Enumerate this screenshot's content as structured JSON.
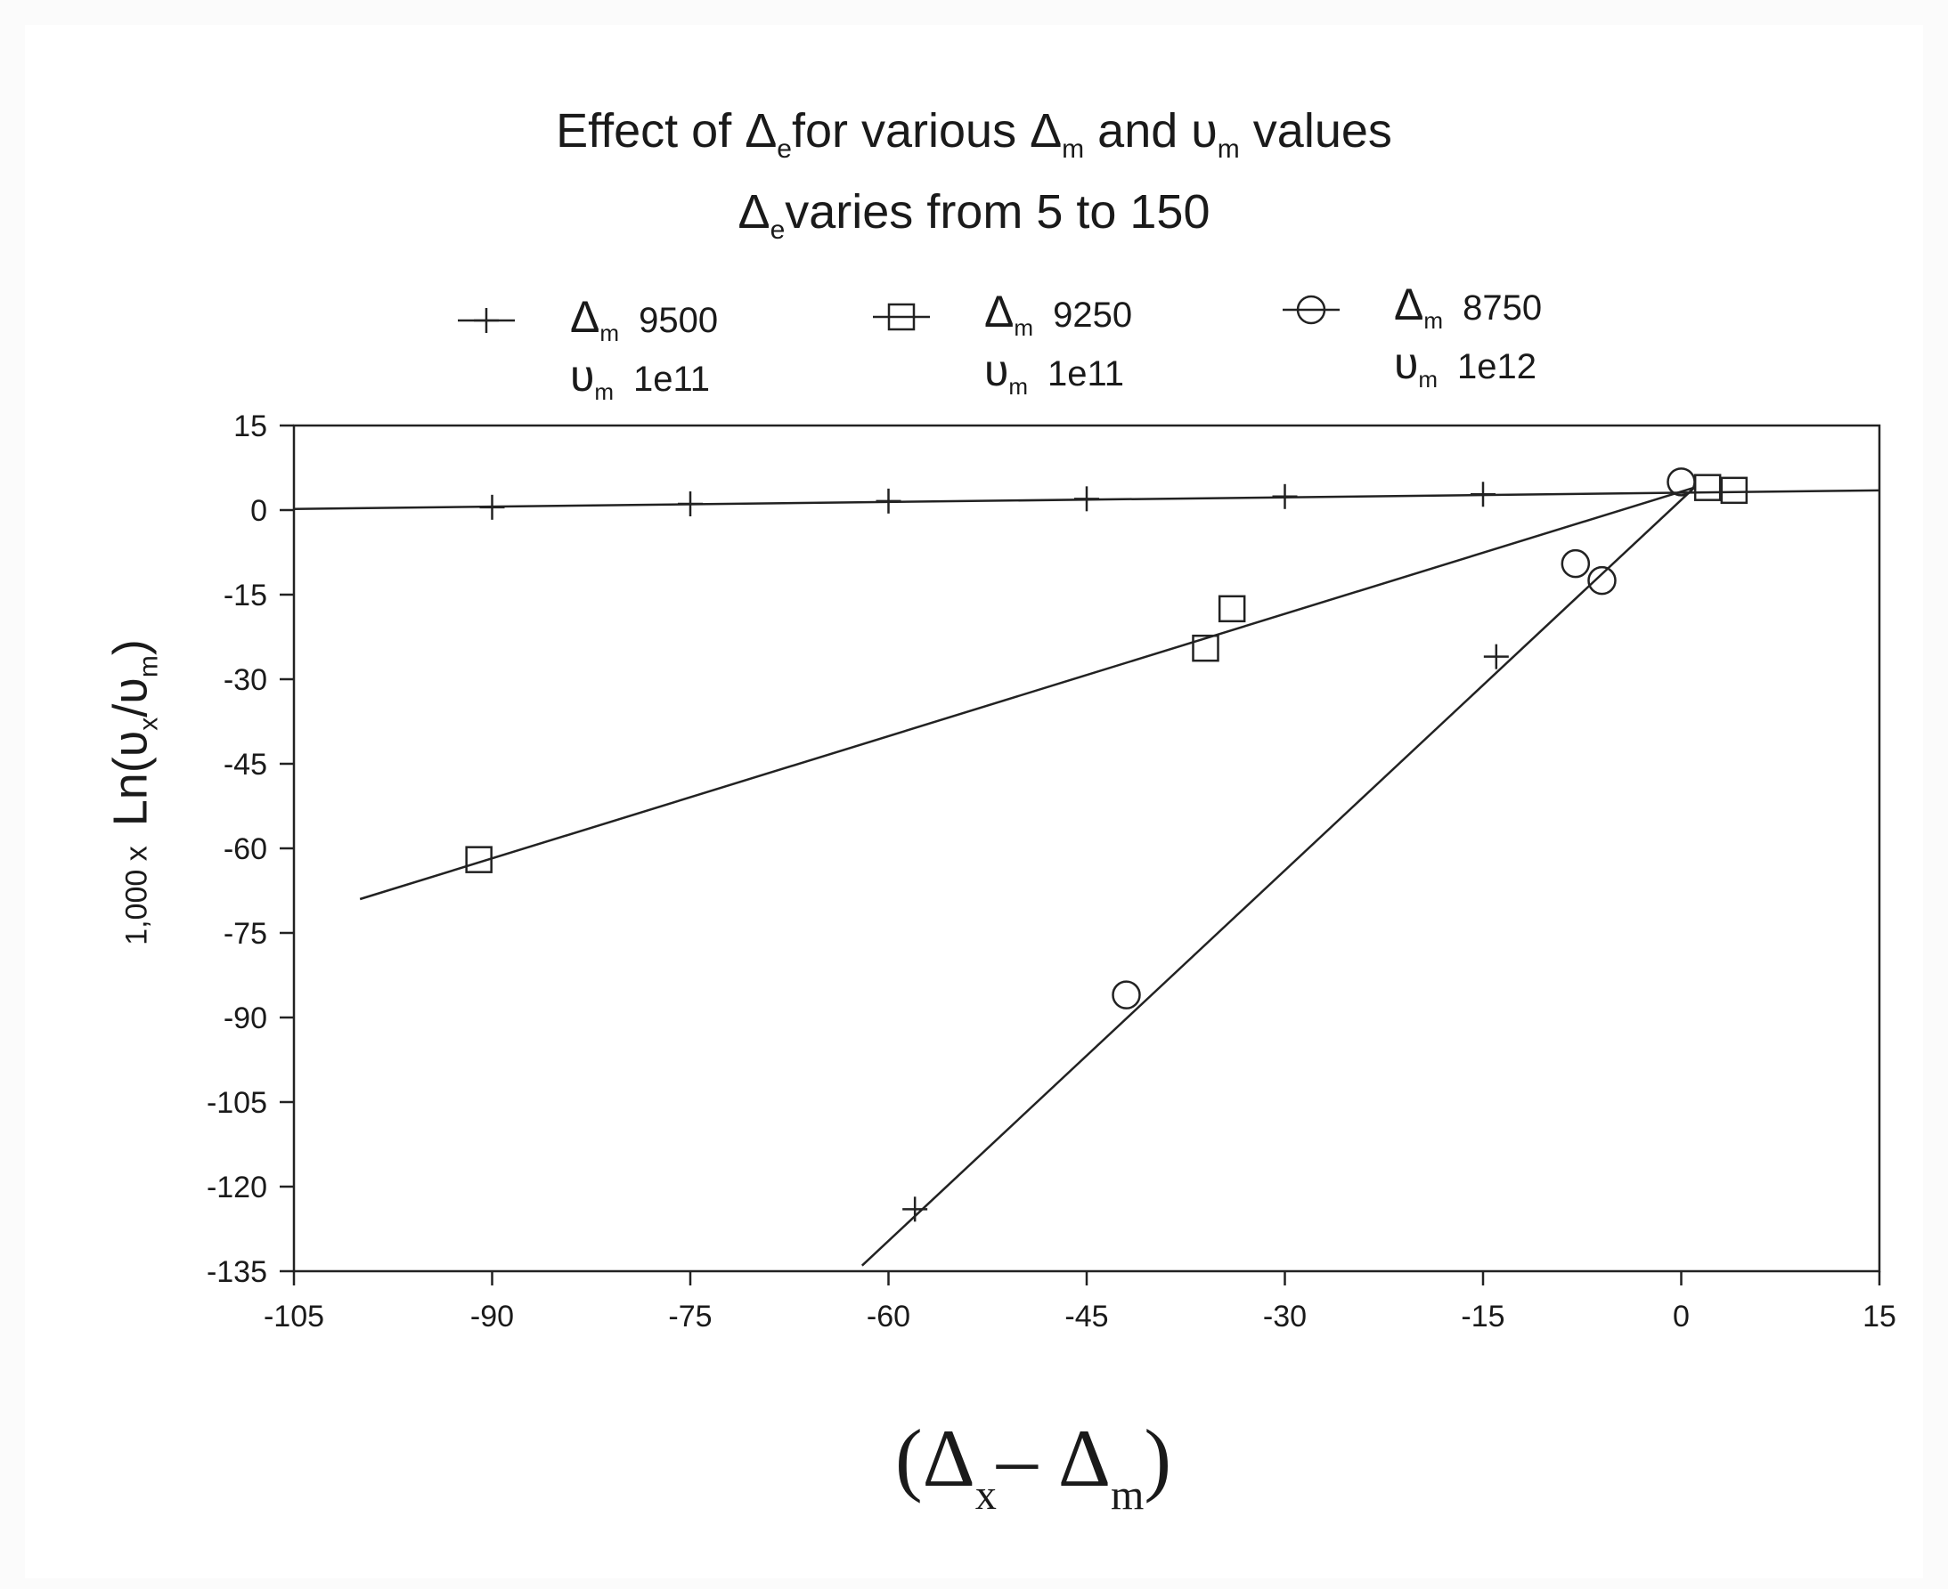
{
  "chart_data": {
    "type": "scatter",
    "title_line1": {
      "pre": "Effect of ",
      "sym1": "Δ",
      "sub1": "e",
      "mid1": "for various ",
      "sym2": "Δ",
      "sub2": "m",
      "mid2": " and ",
      "sym3": "υ",
      "sub3": "m",
      "post": " values"
    },
    "title_line2": {
      "sym": "Δ",
      "sub": "e",
      "post": "varies from 5 to 150"
    },
    "xlabel": {
      "open": "(Δ",
      "sub1": "x",
      "mid": "– Δ",
      "sub2": "m",
      "close": ")"
    },
    "ylabel": {
      "factor": "1,000 x",
      "pre": "Ln(υ",
      "sub1": "x",
      "mid": "/υ",
      "sub2": "m",
      "close": ")"
    },
    "xlim": [
      -105,
      15
    ],
    "ylim": [
      -135,
      15
    ],
    "xticks": [
      "-105",
      "-90",
      "-75",
      "-60",
      "-45",
      "-30",
      "-15",
      "0",
      "15"
    ],
    "yticks": [
      "15",
      "0",
      "-15",
      "-30",
      "-45",
      "-60",
      "-75",
      "-90",
      "-105",
      "-120",
      "-135"
    ],
    "series": [
      {
        "legend": {
          "sym1": "Δ",
          "sub1": "m",
          "val1": "9500",
          "sym2": "υ",
          "sub2": "m",
          "val2": "1e11"
        },
        "marker": "plus",
        "points": [
          {
            "x": -90,
            "y": 0.5
          },
          {
            "x": -75,
            "y": 1.1
          },
          {
            "x": -60,
            "y": 1.6
          },
          {
            "x": -45,
            "y": 2.0
          },
          {
            "x": -30,
            "y": 2.4
          },
          {
            "x": -15,
            "y": 2.8
          },
          {
            "x": -14,
            "y": -26
          },
          {
            "x": -58,
            "y": -124
          }
        ],
        "line": [
          [
            -105,
            0.2
          ],
          [
            15,
            3.5
          ]
        ]
      },
      {
        "legend": {
          "sym1": "Δ",
          "sub1": "m",
          "val1": "9250",
          "sym2": "υ",
          "sub2": "m",
          "val2": "1e11"
        },
        "marker": "square",
        "points": [
          {
            "x": -91,
            "y": -62
          },
          {
            "x": -36,
            "y": -24.5
          },
          {
            "x": -34,
            "y": -17.5
          },
          {
            "x": 2,
            "y": 4
          },
          {
            "x": 4,
            "y": 3.5
          }
        ],
        "line": [
          [
            -100,
            -69
          ],
          [
            1,
            4
          ]
        ]
      },
      {
        "legend": {
          "sym1": "Δ",
          "sub1": "m",
          "val1": "8750",
          "sym2": "υ",
          "sub2": "m",
          "val2": "1e12"
        },
        "marker": "circle",
        "points": [
          {
            "x": -42,
            "y": -86
          },
          {
            "x": -8,
            "y": -9.5
          },
          {
            "x": -6,
            "y": -12.5
          },
          {
            "x": 0,
            "y": 5
          }
        ],
        "line": [
          [
            -62,
            -134
          ],
          [
            1,
            4
          ]
        ]
      }
    ],
    "grid": false
  }
}
